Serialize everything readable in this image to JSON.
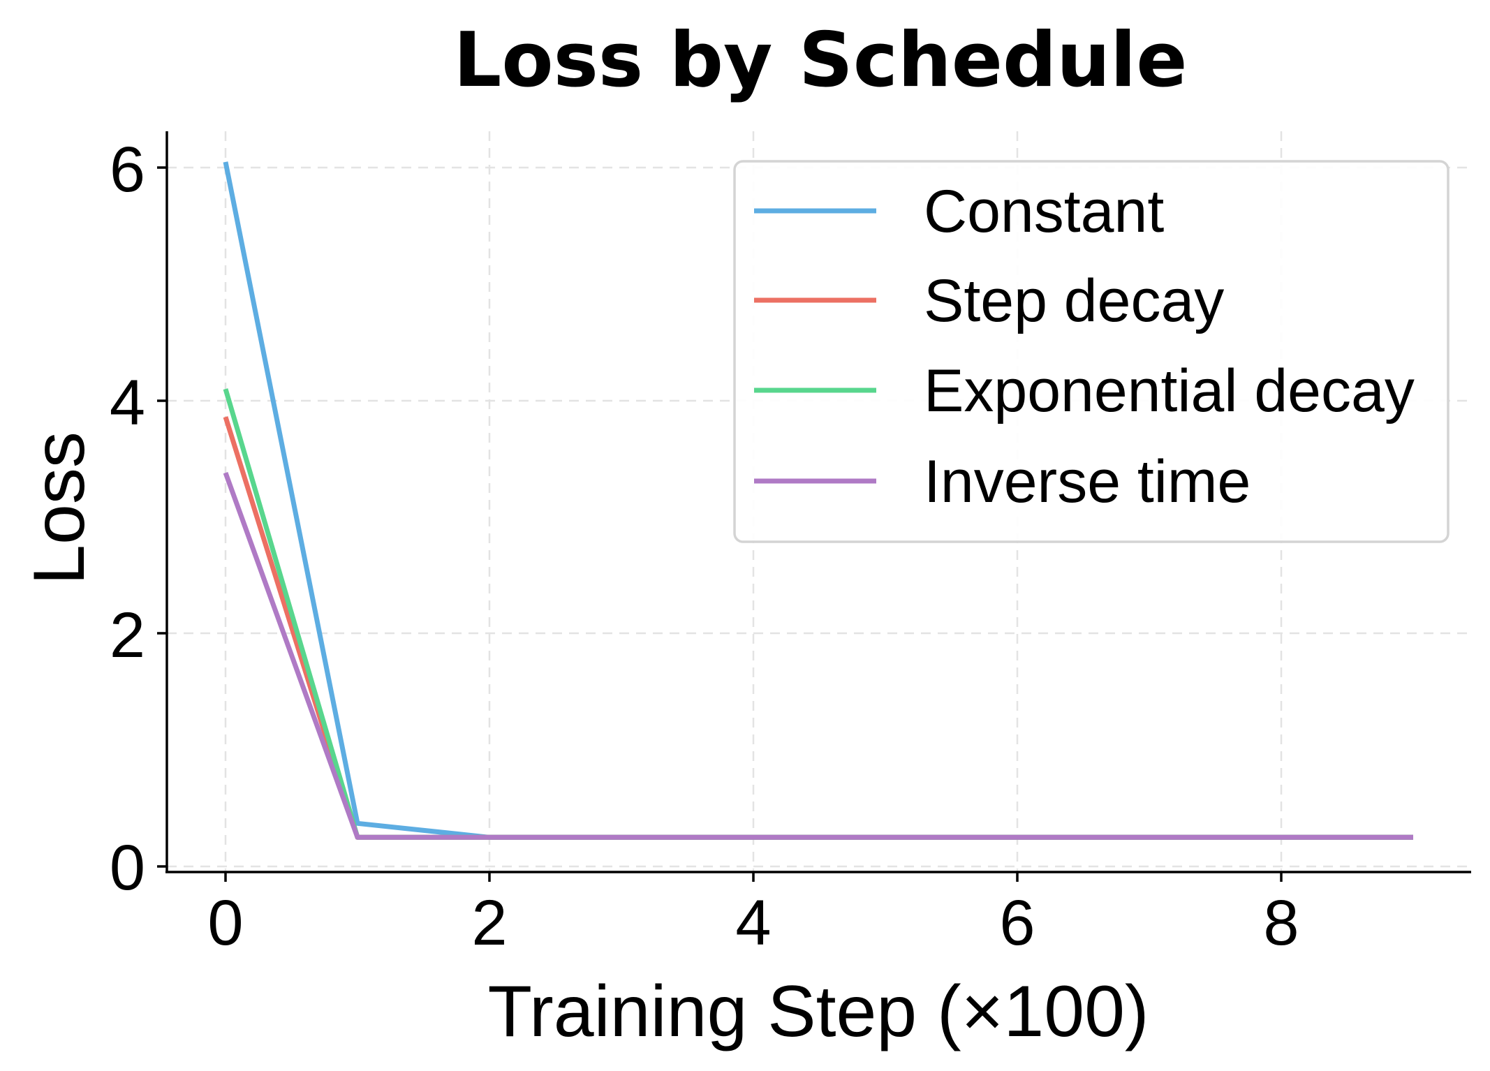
{
  "chart_data": {
    "type": "line",
    "title": "Loss by Schedule",
    "xlabel": "Training Step (×100)",
    "ylabel": "Loss",
    "x": [
      0,
      1,
      2,
      3,
      4,
      5,
      6,
      7,
      8,
      9
    ],
    "xlim": [
      -0.45,
      9.45
    ],
    "ylim": [
      -0.05,
      6.3
    ],
    "xticks": [
      0,
      2,
      4,
      6,
      8
    ],
    "yticks": [
      0,
      2,
      4,
      6
    ],
    "grid": true,
    "grid_style": "dashed",
    "legend_position": "upper right",
    "series": [
      {
        "name": "Constant",
        "color": "#5DADE2",
        "values": [
          6.05,
          0.37,
          0.25,
          0.25,
          0.25,
          0.25,
          0.25,
          0.25,
          0.25,
          0.25
        ]
      },
      {
        "name": "Step decay",
        "color": "#EC7063",
        "values": [
          3.86,
          0.25,
          0.25,
          0.25,
          0.25,
          0.25,
          0.25,
          0.25,
          0.25,
          0.25
        ]
      },
      {
        "name": "Exponential decay",
        "color": "#58D68D",
        "values": [
          4.1,
          0.25,
          0.25,
          0.25,
          0.25,
          0.25,
          0.25,
          0.25,
          0.25,
          0.25
        ]
      },
      {
        "name": "Inverse time",
        "color": "#AF7AC5",
        "values": [
          3.38,
          0.25,
          0.25,
          0.25,
          0.25,
          0.25,
          0.25,
          0.25,
          0.25,
          0.25
        ]
      }
    ]
  },
  "labels": {
    "title": "Loss by Schedule",
    "xlabel": "Training Step (×100)",
    "ylabel": "Loss",
    "xticks": [
      "0",
      "2",
      "4",
      "6",
      "8"
    ],
    "yticks": [
      "0",
      "2",
      "4",
      "6"
    ]
  },
  "legend": {
    "items": [
      {
        "label": "Constant",
        "color": "#5DADE2"
      },
      {
        "label": "Step decay",
        "color": "#EC7063"
      },
      {
        "label": "Exponential decay",
        "color": "#58D68D"
      },
      {
        "label": "Inverse time",
        "color": "#AF7AC5"
      }
    ]
  }
}
